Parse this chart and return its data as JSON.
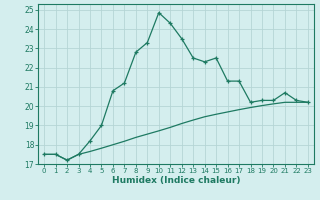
{
  "xlabel": "Humidex (Indice chaleur)",
  "background_color": "#d4eeee",
  "grid_color": "#b5d5d5",
  "line_color": "#1e7a62",
  "xlim": [
    -0.5,
    23.5
  ],
  "ylim": [
    17,
    25.3
  ],
  "x_ticks": [
    0,
    1,
    2,
    3,
    4,
    5,
    6,
    7,
    8,
    9,
    10,
    11,
    12,
    13,
    14,
    15,
    16,
    17,
    18,
    19,
    20,
    21,
    22,
    23
  ],
  "y_ticks": [
    17,
    18,
    19,
    20,
    21,
    22,
    23,
    24,
    25
  ],
  "curve1_x": [
    0,
    1,
    2,
    3,
    4,
    5,
    6,
    7,
    8,
    9,
    10,
    11,
    12,
    13,
    14,
    15,
    16,
    17,
    18,
    19,
    20,
    21,
    22,
    23
  ],
  "curve1_y": [
    17.5,
    17.5,
    17.2,
    17.5,
    18.2,
    19.0,
    20.8,
    21.2,
    22.8,
    23.3,
    24.85,
    24.3,
    23.5,
    22.5,
    22.3,
    22.5,
    21.3,
    21.3,
    20.2,
    20.3,
    20.3,
    20.7,
    20.3,
    20.2
  ],
  "curve2_x": [
    0,
    1,
    2,
    3,
    4,
    5,
    6,
    7,
    8,
    9,
    10,
    11,
    12,
    13,
    14,
    15,
    16,
    17,
    18,
    19,
    20,
    21,
    22,
    23
  ],
  "curve2_y": [
    17.5,
    17.5,
    17.2,
    17.5,
    17.65,
    17.82,
    18.0,
    18.18,
    18.38,
    18.55,
    18.72,
    18.9,
    19.1,
    19.28,
    19.45,
    19.58,
    19.7,
    19.82,
    19.93,
    20.03,
    20.12,
    20.2,
    20.2,
    20.2
  ]
}
